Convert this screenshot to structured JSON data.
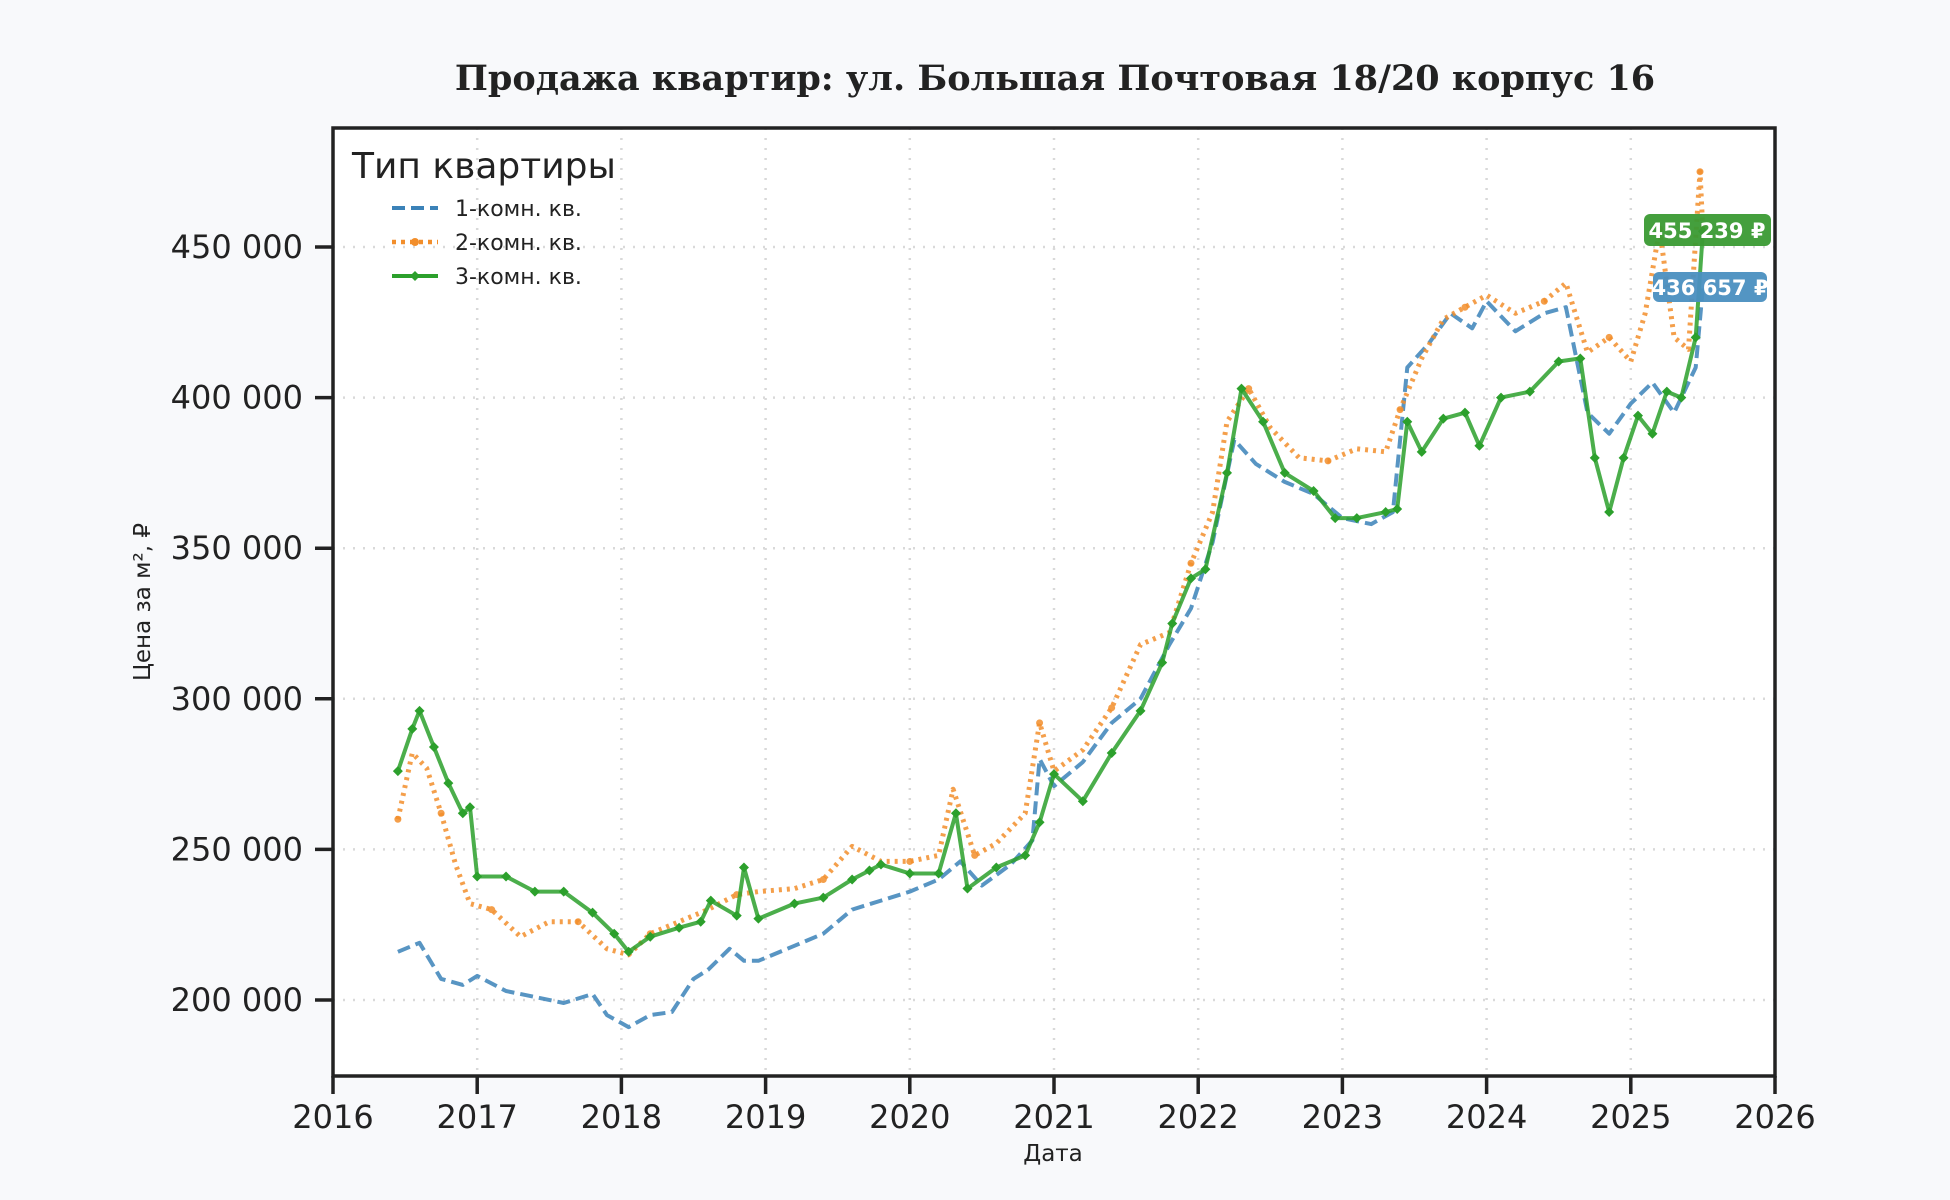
{
  "chart_data": {
    "type": "line",
    "title": "Продажа квартир: ул. Большая Почтовая 18/20 корпус 16",
    "xlabel": "Дата",
    "ylabel": "Цена за м², ₽",
    "xlim": [
      2016,
      2026
    ],
    "ylim": [
      175000,
      487000
    ],
    "x_ticks": [
      "2016",
      "2017",
      "2018",
      "2019",
      "2020",
      "2021",
      "2022",
      "2023",
      "2024",
      "2025",
      "2026"
    ],
    "y_ticks": [
      "200 000",
      "250 000",
      "300 000",
      "350 000",
      "400 000",
      "450 000"
    ],
    "grid": true,
    "legend": {
      "title": "Тип квартиры",
      "position": "upper left"
    },
    "series": [
      {
        "name": "1-комн. кв.",
        "color": "#3b82b8",
        "style": "dashed",
        "x": [
          2016.45,
          2016.6,
          2016.75,
          2016.9,
          2017.0,
          2017.2,
          2017.4,
          2017.6,
          2017.8,
          2017.9,
          2018.05,
          2018.2,
          2018.35,
          2018.5,
          2018.6,
          2018.75,
          2018.85,
          2018.95,
          2019.2,
          2019.4,
          2019.6,
          2019.8,
          2020.0,
          2020.2,
          2020.35,
          2020.5,
          2020.7,
          2020.85,
          2020.9,
          2021.0,
          2021.2,
          2021.4,
          2021.6,
          2021.8,
          2021.95,
          2022.1,
          2022.25,
          2022.4,
          2022.6,
          2022.8,
          2023.0,
          2023.2,
          2023.35,
          2023.45,
          2023.6,
          2023.75,
          2023.9,
          2024.0,
          2024.2,
          2024.4,
          2024.55,
          2024.7,
          2024.85,
          2025.0,
          2025.15,
          2025.3,
          2025.45,
          2025.5
        ],
        "values": [
          216000,
          219000,
          207000,
          205000,
          208000,
          203000,
          201000,
          199000,
          202000,
          195000,
          191000,
          195000,
          196000,
          207000,
          210000,
          217000,
          213000,
          213000,
          218000,
          222000,
          230000,
          233000,
          236000,
          240000,
          246000,
          238000,
          245000,
          253000,
          280000,
          271000,
          279000,
          292000,
          300000,
          318000,
          330000,
          352000,
          386000,
          378000,
          372000,
          368000,
          360000,
          358000,
          362000,
          410000,
          418000,
          428000,
          423000,
          432000,
          422000,
          428000,
          430000,
          395000,
          388000,
          398000,
          405000,
          395000,
          410000,
          436657
        ]
      },
      {
        "name": "2-комн. кв.",
        "color": "#f28e2b",
        "style": "dotted",
        "x": [
          2016.45,
          2016.55,
          2016.65,
          2016.75,
          2016.85,
          2016.95,
          2017.1,
          2017.3,
          2017.5,
          2017.7,
          2017.9,
          2018.05,
          2018.2,
          2018.4,
          2018.6,
          2018.8,
          2018.95,
          2019.2,
          2019.4,
          2019.6,
          2019.8,
          2020.0,
          2020.2,
          2020.3,
          2020.45,
          2020.6,
          2020.8,
          2020.9,
          2021.0,
          2021.2,
          2021.4,
          2021.6,
          2021.8,
          2021.95,
          2022.1,
          2022.2,
          2022.35,
          2022.5,
          2022.7,
          2022.9,
          2023.1,
          2023.3,
          2023.4,
          2023.55,
          2023.7,
          2023.85,
          2024.0,
          2024.2,
          2024.4,
          2024.55,
          2024.7,
          2024.85,
          2025.0,
          2025.1,
          2025.2,
          2025.3,
          2025.4,
          2025.48,
          2025.5
        ],
        "values": [
          260000,
          282000,
          277000,
          262000,
          245000,
          232000,
          230000,
          221000,
          226000,
          226000,
          217000,
          215000,
          222000,
          226000,
          230000,
          235000,
          236000,
          237000,
          240000,
          251000,
          246000,
          246000,
          248000,
          270000,
          248000,
          252000,
          262000,
          292000,
          276000,
          283000,
          297000,
          318000,
          322000,
          345000,
          362000,
          392000,
          403000,
          390000,
          380000,
          379000,
          383000,
          382000,
          396000,
          413000,
          426000,
          430000,
          434000,
          428000,
          432000,
          438000,
          415000,
          420000,
          412000,
          428000,
          456000,
          420000,
          416000,
          475000,
          455239
        ]
      },
      {
        "name": "3-комн. кв.",
        "color": "#2ca02c",
        "style": "solid-marker",
        "x": [
          2016.45,
          2016.55,
          2016.6,
          2016.7,
          2016.8,
          2016.9,
          2016.95,
          2017.0,
          2017.2,
          2017.4,
          2017.6,
          2017.8,
          2017.95,
          2018.05,
          2018.2,
          2018.4,
          2018.55,
          2018.62,
          2018.8,
          2018.85,
          2018.95,
          2019.2,
          2019.4,
          2019.6,
          2019.72,
          2019.8,
          2020.0,
          2020.2,
          2020.32,
          2020.4,
          2020.6,
          2020.8,
          2020.9,
          2021.0,
          2021.2,
          2021.4,
          2021.6,
          2021.75,
          2021.82,
          2021.95,
          2022.05,
          2022.2,
          2022.3,
          2022.45,
          2022.6,
          2022.8,
          2022.95,
          2023.1,
          2023.3,
          2023.38,
          2023.45,
          2023.55,
          2023.7,
          2023.85,
          2023.95,
          2024.1,
          2024.3,
          2024.5,
          2024.65,
          2024.75,
          2024.85,
          2024.95,
          2025.05,
          2025.15,
          2025.25,
          2025.35,
          2025.45,
          2025.5
        ],
        "values": [
          276000,
          290000,
          296000,
          284000,
          272000,
          262000,
          264000,
          241000,
          241000,
          236000,
          236000,
          229000,
          222000,
          216000,
          221000,
          224000,
          226000,
          233000,
          228000,
          244000,
          227000,
          232000,
          234000,
          240000,
          243000,
          245000,
          242000,
          242000,
          262000,
          237000,
          244000,
          248000,
          259000,
          275000,
          266000,
          282000,
          296000,
          312000,
          325000,
          340000,
          343000,
          375000,
          403000,
          392000,
          375000,
          369000,
          360000,
          360000,
          362000,
          363000,
          392000,
          382000,
          393000,
          395000,
          384000,
          400000,
          402000,
          412000,
          413000,
          380000,
          362000,
          380000,
          394000,
          388000,
          402000,
          400000,
          420000,
          455239
        ]
      }
    ],
    "annotations": [
      {
        "text": "455 239 ₽",
        "series": "3-комн. кв.",
        "color": "#3a9a33"
      },
      {
        "text": "436 657 ₽",
        "series": "1-комн. кв.",
        "color": "#4a8fc0"
      }
    ]
  },
  "title": "Продажа квартир: ул. Большая Почтовая 18/20 корпус 16",
  "axes": {
    "xlabel": "Дата",
    "ylabel": "Цена за м², ₽"
  },
  "legend": {
    "title": "Тип квартиры",
    "items": [
      "1-комн. кв.",
      "2-комн. кв.",
      "3-комн. кв."
    ]
  },
  "badges": {
    "green": "455 239 ₽",
    "blue": "436 657 ₽"
  }
}
